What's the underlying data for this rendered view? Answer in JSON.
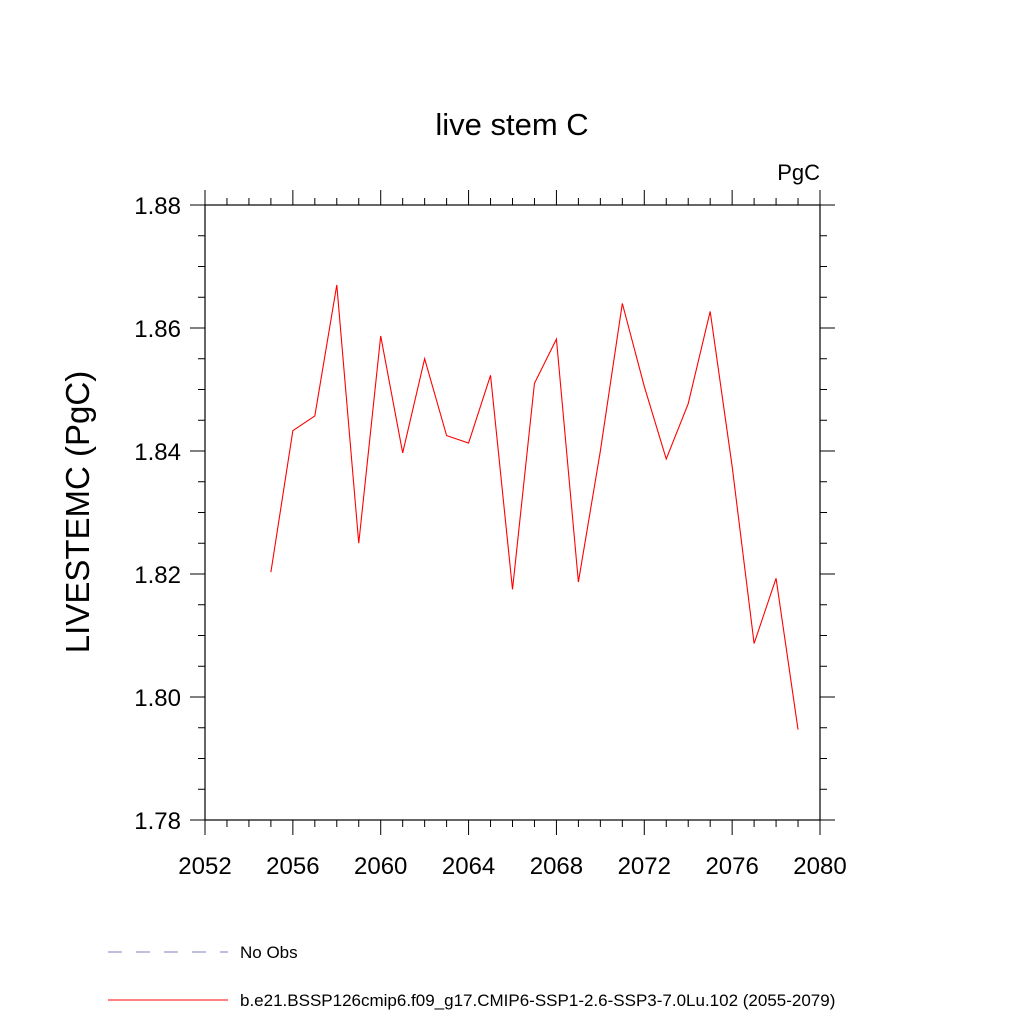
{
  "chart_data": {
    "type": "line",
    "title": "live stem C",
    "units_label": "PgC",
    "xlabel": "",
    "ylabel": "LIVESTEMC  (PgC)",
    "xlim": [
      2052,
      2080
    ],
    "ylim": [
      1.78,
      1.88
    ],
    "x_ticks": [
      "2052",
      "2056",
      "2060",
      "2064",
      "2068",
      "2072",
      "2076",
      "2080"
    ],
    "y_ticks": [
      "1.78",
      "1.80",
      "1.82",
      "1.84",
      "1.86",
      "1.88"
    ],
    "series": [
      {
        "name": "b.e21.BSSP126cmip6.f09_g17.CMIP6-SSP1-2.6-SSP3-7.0Lu.102 (2055-2079)",
        "color": "#ff0000",
        "x": [
          2055,
          2056,
          2057,
          2058,
          2059,
          2060,
          2061,
          2062,
          2063,
          2064,
          2065,
          2066,
          2067,
          2068,
          2069,
          2070,
          2071,
          2072,
          2073,
          2074,
          2075,
          2076,
          2077,
          2078,
          2079
        ],
        "values": [
          1.8203,
          1.8433,
          1.8457,
          1.867,
          1.825,
          1.8587,
          1.8397,
          1.855,
          1.8425,
          1.8413,
          1.8523,
          1.8175,
          1.851,
          1.8582,
          1.8187,
          1.84,
          1.864,
          1.8505,
          1.8387,
          1.8477,
          1.8627,
          1.8375,
          1.8087,
          1.8193,
          1.7947
        ]
      }
    ],
    "legend": [
      {
        "label": "No Obs",
        "color": "#7f7fbf",
        "style": "dashed"
      },
      {
        "label": "b.e21.BSSP126cmip6.f09_g17.CMIP6-SSP1-2.6-SSP3-7.0Lu.102 (2055-2079)",
        "color": "#ff0000",
        "style": "solid"
      }
    ]
  }
}
